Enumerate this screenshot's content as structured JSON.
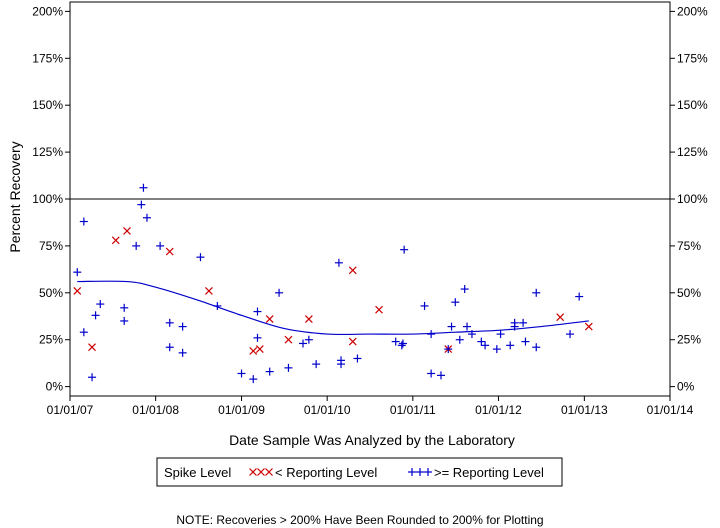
{
  "chart_data": {
    "type": "scatter",
    "xlabel": "Date Sample Was Analyzed by the Laboratory",
    "ylabel": "Percent Recovery",
    "x_axis": {
      "type": "date",
      "range": [
        "2007-01-01",
        "2014-01-01"
      ],
      "ticks": [
        "2007-01-01",
        "2008-01-01",
        "2009-01-01",
        "2010-01-01",
        "2011-01-01",
        "2012-01-01",
        "2013-01-01",
        "2014-01-01"
      ],
      "tick_labels": [
        "01/01/07",
        "01/01/08",
        "01/01/09",
        "01/01/10",
        "01/01/11",
        "01/01/12",
        "01/01/13",
        "01/01/14"
      ]
    },
    "y_axis": {
      "range": [
        -5,
        205
      ],
      "ticks": [
        0,
        25,
        50,
        75,
        100,
        125,
        150,
        175,
        200
      ],
      "tick_labels": [
        "0%",
        "25%",
        "50%",
        "75%",
        "100%",
        "125%",
        "150%",
        "175%",
        "200%"
      ],
      "mirrored_right": true
    },
    "reference_line": {
      "y": 100
    },
    "legend": {
      "title": "Spike Level",
      "position": "bottom",
      "items": [
        {
          "symbol": "XXX",
          "label": "< Reporting Level",
          "color": "#cc0000"
        },
        {
          "symbol": "+++",
          "label": ">= Reporting Level",
          "color": "#0000cc"
        }
      ]
    },
    "note": "NOTE: Recoveries > 200% Have Been Rounded to 200% for Plotting",
    "colors": {
      "below_reporting": "#cc0000",
      "above_reporting": "#0000cc",
      "trend": "#0000cc"
    },
    "series": [
      {
        "name": "< Reporting Level",
        "marker": "x",
        "points": [
          {
            "x": "2007-02-01",
            "y": 51
          },
          {
            "x": "2007-04-05",
            "y": 21
          },
          {
            "x": "2007-07-15",
            "y": 78
          },
          {
            "x": "2007-09-01",
            "y": 83
          },
          {
            "x": "2008-03-01",
            "y": 72
          },
          {
            "x": "2008-08-15",
            "y": 51
          },
          {
            "x": "2009-02-20",
            "y": 19
          },
          {
            "x": "2009-03-20",
            "y": 20
          },
          {
            "x": "2009-05-01",
            "y": 36
          },
          {
            "x": "2009-07-20",
            "y": 25
          },
          {
            "x": "2009-10-15",
            "y": 36
          },
          {
            "x": "2010-04-20",
            "y": 24
          },
          {
            "x": "2010-04-20",
            "y": 62
          },
          {
            "x": "2010-08-10",
            "y": 41
          },
          {
            "x": "2011-06-01",
            "y": 20
          },
          {
            "x": "2012-09-20",
            "y": 37
          },
          {
            "x": "2013-01-20",
            "y": 32
          }
        ]
      },
      {
        "name": ">= Reporting Level",
        "marker": "+",
        "points": [
          {
            "x": "2007-02-01",
            "y": 61
          },
          {
            "x": "2007-03-01",
            "y": 88
          },
          {
            "x": "2007-03-01",
            "y": 29
          },
          {
            "x": "2007-04-05",
            "y": 5
          },
          {
            "x": "2007-04-20",
            "y": 38
          },
          {
            "x": "2007-05-10",
            "y": 44
          },
          {
            "x": "2007-08-20",
            "y": 42
          },
          {
            "x": "2007-08-20",
            "y": 35
          },
          {
            "x": "2007-10-10",
            "y": 75
          },
          {
            "x": "2007-11-01",
            "y": 97
          },
          {
            "x": "2007-11-10",
            "y": 106
          },
          {
            "x": "2007-11-25",
            "y": 90
          },
          {
            "x": "2008-01-20",
            "y": 75
          },
          {
            "x": "2008-03-01",
            "y": 21
          },
          {
            "x": "2008-03-01",
            "y": 34
          },
          {
            "x": "2008-04-25",
            "y": 32
          },
          {
            "x": "2008-04-25",
            "y": 18
          },
          {
            "x": "2008-07-10",
            "y": 69
          },
          {
            "x": "2008-09-20",
            "y": 43
          },
          {
            "x": "2009-01-01",
            "y": 7
          },
          {
            "x": "2009-02-20",
            "y": 4
          },
          {
            "x": "2009-03-10",
            "y": 26
          },
          {
            "x": "2009-03-10",
            "y": 40
          },
          {
            "x": "2009-05-01",
            "y": 8
          },
          {
            "x": "2009-06-10",
            "y": 50
          },
          {
            "x": "2009-07-20",
            "y": 10
          },
          {
            "x": "2009-09-20",
            "y": 23
          },
          {
            "x": "2009-10-15",
            "y": 25
          },
          {
            "x": "2009-11-15",
            "y": 12
          },
          {
            "x": "2010-02-20",
            "y": 66
          },
          {
            "x": "2010-03-01",
            "y": 12
          },
          {
            "x": "2010-03-01",
            "y": 14
          },
          {
            "x": "2010-05-10",
            "y": 15
          },
          {
            "x": "2010-10-20",
            "y": 24
          },
          {
            "x": "2010-11-15",
            "y": 22
          },
          {
            "x": "2010-11-20",
            "y": 23
          },
          {
            "x": "2010-11-25",
            "y": 73
          },
          {
            "x": "2011-02-20",
            "y": 43
          },
          {
            "x": "2011-03-20",
            "y": 28
          },
          {
            "x": "2011-03-20",
            "y": 7
          },
          {
            "x": "2011-05-01",
            "y": 6
          },
          {
            "x": "2011-06-01",
            "y": 20
          },
          {
            "x": "2011-06-15",
            "y": 32
          },
          {
            "x": "2011-07-01",
            "y": 45
          },
          {
            "x": "2011-07-20",
            "y": 25
          },
          {
            "x": "2011-08-10",
            "y": 52
          },
          {
            "x": "2011-08-20",
            "y": 32
          },
          {
            "x": "2011-09-10",
            "y": 28
          },
          {
            "x": "2011-10-20",
            "y": 24
          },
          {
            "x": "2011-11-05",
            "y": 22
          },
          {
            "x": "2011-12-25",
            "y": 20
          },
          {
            "x": "2012-01-10",
            "y": 28
          },
          {
            "x": "2012-02-20",
            "y": 22
          },
          {
            "x": "2012-03-10",
            "y": 34
          },
          {
            "x": "2012-03-10",
            "y": 32
          },
          {
            "x": "2012-04-15",
            "y": 34
          },
          {
            "x": "2012-04-25",
            "y": 24
          },
          {
            "x": "2012-06-10",
            "y": 50
          },
          {
            "x": "2012-06-10",
            "y": 21
          },
          {
            "x": "2012-11-01",
            "y": 28
          },
          {
            "x": "2012-12-10",
            "y": 48
          }
        ]
      }
    ],
    "trend_line": {
      "points": [
        {
          "x": "2007-02-01",
          "y": 56
        },
        {
          "x": "2007-09-01",
          "y": 56
        },
        {
          "x": "2008-01-01",
          "y": 53
        },
        {
          "x": "2008-07-01",
          "y": 46
        },
        {
          "x": "2009-01-01",
          "y": 38
        },
        {
          "x": "2009-07-01",
          "y": 31
        },
        {
          "x": "2010-01-01",
          "y": 28
        },
        {
          "x": "2010-07-01",
          "y": 28
        },
        {
          "x": "2011-01-01",
          "y": 28
        },
        {
          "x": "2011-07-01",
          "y": 29
        },
        {
          "x": "2012-01-01",
          "y": 30
        },
        {
          "x": "2012-07-01",
          "y": 32
        },
        {
          "x": "2013-01-20",
          "y": 35
        }
      ]
    }
  }
}
